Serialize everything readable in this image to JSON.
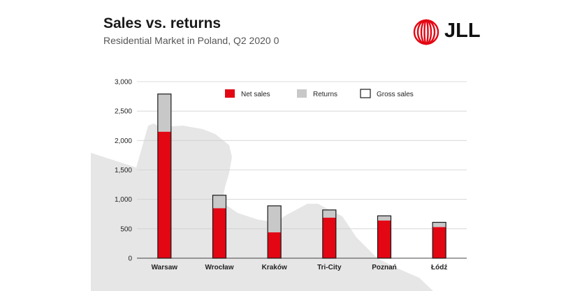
{
  "header": {
    "title": "Sales vs. returns",
    "subtitle": "Residential Market in Poland, Q2 2020 0"
  },
  "logo": {
    "text": "JLL",
    "color": "#e30613"
  },
  "colors": {
    "net": "#e30613",
    "returns": "#c8c8c8",
    "outline": "#1a1a1a",
    "map": "#e6e6e6"
  },
  "chart_data": {
    "type": "bar",
    "stacked": true,
    "categories": [
      "Warsaw",
      "Wrocław",
      "Kraków",
      "Tri-City",
      "Poznań",
      "Łódź"
    ],
    "series": [
      {
        "name": "Net sales",
        "values": [
          2150,
          850,
          440,
          690,
          640,
          530
        ]
      },
      {
        "name": "Returns",
        "values": [
          640,
          220,
          450,
          130,
          80,
          80
        ]
      }
    ],
    "gross_label": "Gross sales",
    "ylim": [
      0,
      3000
    ],
    "yticks": [
      0,
      500,
      1000,
      1500,
      2000,
      2500,
      3000
    ],
    "ytick_labels": [
      "0",
      "500",
      "1,000",
      "1,500",
      "2,000",
      "2,500",
      "3,000"
    ],
    "grid": true,
    "legend_position": "top"
  }
}
